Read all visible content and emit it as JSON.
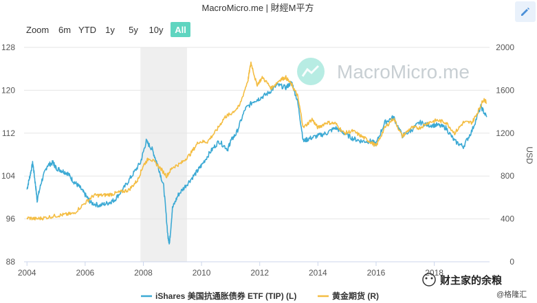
{
  "title": "MacroMicro.me | 財經M平方",
  "zoom": {
    "label": "Zoom",
    "buttons": [
      {
        "label": "6m"
      },
      {
        "label": "YTD"
      },
      {
        "label": "1y"
      },
      {
        "label": "5y"
      },
      {
        "label": "10y"
      },
      {
        "label": "All",
        "active": true
      }
    ]
  },
  "watermark": "MacroMicro.me",
  "footer": {
    "brand": "财主家的余粮",
    "sub": "@格隆汇"
  },
  "colors": {
    "tip": "#3ba9d4",
    "gold": "#f4bd42",
    "active": "#5fd5c0",
    "recession": "#efefef"
  },
  "chart_data": {
    "type": "line",
    "title": "MacroMicro.me | 財經M平方",
    "xlabel": "",
    "ylabel_left": "",
    "ylabel_right": "USD",
    "x_ticks": [
      "2004",
      "2006",
      "2008",
      "2010",
      "2012",
      "2014",
      "2016",
      "2018"
    ],
    "xlim": [
      2003.9,
      2019.9
    ],
    "ylim_left": [
      88,
      128
    ],
    "ylim_right": [
      0,
      2000
    ],
    "y_ticks_left": [
      "128",
      "120",
      "112",
      "104",
      "96",
      "88"
    ],
    "y_ticks_right": [
      "2000",
      "1600",
      "1200",
      "800",
      "400",
      "0"
    ],
    "shaded_region": {
      "x0": 2007.9,
      "x1": 2009.5
    },
    "grid": true,
    "legend_position": "bottom",
    "series": [
      {
        "name": "iShares 美国抗通胀债券 ETF (TIP) (L)",
        "axis": "left",
        "x": [
          2004.0,
          2004.1,
          2004.2,
          2004.3,
          2004.35,
          2004.5,
          2004.7,
          2004.9,
          2005.0,
          2005.2,
          2005.4,
          2005.6,
          2005.8,
          2006.0,
          2006.2,
          2006.5,
          2006.8,
          2007.0,
          2007.3,
          2007.6,
          2007.9,
          2008.1,
          2008.3,
          2008.5,
          2008.7,
          2008.85,
          2008.9,
          2009.0,
          2009.2,
          2009.5,
          2009.8,
          2010.0,
          2010.3,
          2010.6,
          2010.9,
          2011.0,
          2011.2,
          2011.5,
          2011.8,
          2012.0,
          2012.3,
          2012.6,
          2012.9,
          2013.1,
          2013.3,
          2013.5,
          2013.7,
          2014.0,
          2014.3,
          2014.6,
          2014.9,
          2015.2,
          2015.5,
          2015.8,
          2016.0,
          2016.3,
          2016.6,
          2016.9,
          2017.2,
          2017.5,
          2017.8,
          2018.1,
          2018.4,
          2018.7,
          2019.0,
          2019.3,
          2019.6,
          2019.8
        ],
        "y": [
          101.5,
          104.0,
          106.5,
          102.0,
          99.5,
          103.0,
          106.0,
          106.5,
          105.5,
          105.0,
          104.5,
          103.0,
          102.0,
          100.5,
          99.0,
          98.5,
          99.0,
          99.5,
          101.5,
          104.0,
          106.5,
          110.5,
          109.0,
          106.0,
          102.0,
          92.5,
          91.5,
          98.0,
          100.5,
          102.5,
          104.5,
          106.0,
          108.5,
          110.5,
          109.0,
          110.5,
          112.0,
          116.5,
          118.0,
          118.5,
          119.5,
          121.0,
          120.5,
          121.5,
          118.0,
          110.5,
          111.0,
          111.5,
          112.0,
          113.0,
          112.0,
          111.0,
          110.5,
          110.5,
          110.0,
          114.0,
          115.0,
          111.5,
          112.5,
          114.0,
          113.5,
          113.5,
          113.0,
          110.5,
          109.5,
          112.5,
          117.0,
          115.0
        ]
      },
      {
        "name": "黄金期货 (R)",
        "axis": "right",
        "x": [
          2004.0,
          2004.3,
          2004.6,
          2005.0,
          2005.3,
          2005.6,
          2006.0,
          2006.3,
          2006.6,
          2006.9,
          2007.2,
          2007.5,
          2007.8,
          2008.0,
          2008.2,
          2008.5,
          2008.8,
          2009.0,
          2009.3,
          2009.6,
          2009.9,
          2010.2,
          2010.5,
          2010.8,
          2011.0,
          2011.3,
          2011.6,
          2011.7,
          2011.9,
          2012.1,
          2012.4,
          2012.7,
          2012.9,
          2013.1,
          2013.3,
          2013.5,
          2013.8,
          2014.0,
          2014.3,
          2014.6,
          2014.9,
          2015.2,
          2015.5,
          2015.8,
          2016.0,
          2016.3,
          2016.6,
          2016.9,
          2017.2,
          2017.5,
          2017.8,
          2018.1,
          2018.4,
          2018.7,
          2019.0,
          2019.3,
          2019.5,
          2019.7,
          2019.8
        ],
        "y": [
          410,
          400,
          410,
          430,
          440,
          450,
          550,
          620,
          620,
          630,
          650,
          670,
          760,
          900,
          970,
          900,
          800,
          880,
          920,
          1000,
          1120,
          1120,
          1220,
          1350,
          1380,
          1450,
          1700,
          1860,
          1650,
          1720,
          1620,
          1700,
          1720,
          1650,
          1550,
          1250,
          1330,
          1250,
          1300,
          1290,
          1200,
          1220,
          1170,
          1120,
          1080,
          1250,
          1340,
          1170,
          1250,
          1250,
          1300,
          1320,
          1300,
          1200,
          1300,
          1300,
          1400,
          1520,
          1480
        ]
      }
    ]
  }
}
